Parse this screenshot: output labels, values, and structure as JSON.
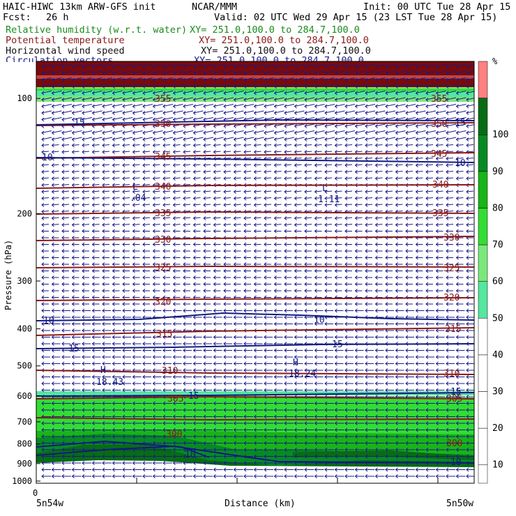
{
  "header": {
    "model": "HAIC-HIWC 13km ARW-GFS init",
    "org": "NCAR/MMM",
    "init": "Init: 00 UTC Tue 28 Apr 15",
    "fcst_label": "Fcst:",
    "fcst_value": "26 h",
    "valid": "Valid: 02 UTC Wed 29 Apr 15 (23 LST Tue 28 Apr 15)",
    "fields": [
      {
        "name": "Relative humidity (w.r.t. water)",
        "xy": "XY= 251.0,100.0 to 284.7,100.0",
        "color": "#1a8c1a"
      },
      {
        "name": "Potential temperature",
        "xy": "XY= 251.0,100.0 to 284.7,100.0",
        "color": "#8b1a1a"
      },
      {
        "name": "Horizontal wind speed",
        "xy": "XY= 251.0,100.0 to 284.7,100.0",
        "color": "#111111"
      },
      {
        "name": "Circulation vectors",
        "xy": "XY= 251.0,100.0 to 284.7,100.0",
        "color": "#1a1a8c"
      }
    ]
  },
  "chart_data": {
    "type": "cross-section",
    "ylabel": "Pressure (hPa)",
    "xlabel": "Distance (km)",
    "x_origin_label": "0",
    "x_left_label": "5n54w",
    "x_right_label": "5n50w",
    "yticks": [
      100,
      200,
      300,
      400,
      500,
      600,
      700,
      800,
      900,
      1000
    ],
    "yscale": "log",
    "ylim": [
      1013,
      80
    ],
    "colorbar": {
      "unit": "%",
      "levels": [
        10,
        20,
        30,
        40,
        50,
        60,
        70,
        80,
        90,
        100
      ],
      "colors": [
        "#ffffff",
        "#ffffff",
        "#ffffff",
        "#ffffff",
        "#ffffff",
        "#55e6a0",
        "#7be87b",
        "#33dd33",
        "#18b418",
        "#078a23",
        "#086b15",
        "#ff8080"
      ]
    },
    "theta_contours": [
      {
        "value": 300,
        "label_y": 622
      },
      {
        "value": 305,
        "label_y": 571
      },
      {
        "value": 310,
        "label_y": 532
      },
      {
        "value": 315,
        "label_y": 478
      },
      {
        "value": 320,
        "label_y": 433
      },
      {
        "value": 325,
        "label_y": 383
      },
      {
        "value": 330,
        "label_y": 344
      },
      {
        "value": 335,
        "label_y": 305
      },
      {
        "value": 340,
        "label_y": 267
      },
      {
        "value": 345,
        "label_y": 224
      },
      {
        "value": 350,
        "label_y": 176
      },
      {
        "value": 355,
        "label_y": 141
      }
    ],
    "wind_labels": [
      "15",
      "10",
      "10",
      "15",
      "15",
      "10"
    ],
    "extrema": [
      {
        "mark": "L",
        "value": ".04"
      },
      {
        "mark": "L",
        "value": "1.11"
      },
      {
        "mark": "H",
        "value": "18.43"
      },
      {
        "mark": "H",
        "value": "18.24"
      }
    ]
  }
}
